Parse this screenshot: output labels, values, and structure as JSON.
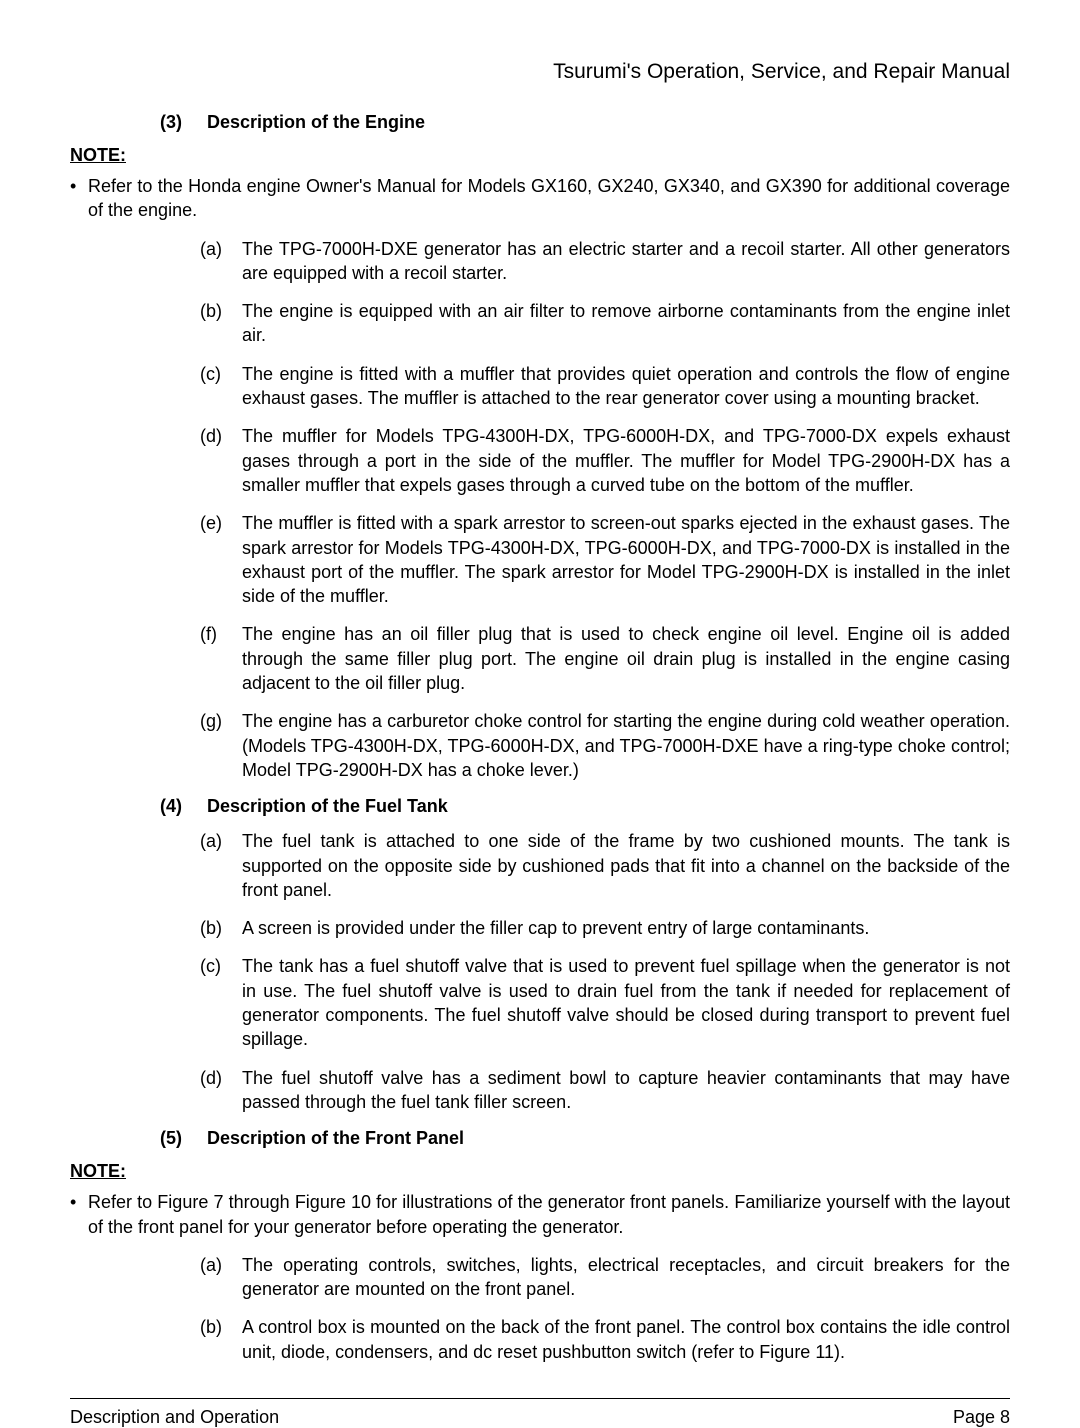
{
  "header": {
    "title": "Tsurumi's Operation, Service, and Repair Manual"
  },
  "sections": {
    "s3": {
      "num": "(3)",
      "title": "Description of the Engine",
      "note": "NOTE:",
      "bullet": "Refer to the Honda engine Owner's Manual for Models GX160, GX240, GX340, and GX390 for additional coverage of the engine.",
      "items": {
        "a": {
          "l": "(a)",
          "t": "The TPG-7000H-DXE generator has an electric starter and a recoil starter. All other generators are equipped with a recoil starter."
        },
        "b": {
          "l": "(b)",
          "t": "The engine is equipped with an air filter to remove airborne contaminants from the engine inlet air."
        },
        "c": {
          "l": "(c)",
          "t": "The engine is fitted with a muffler that provides quiet operation and controls the flow of engine exhaust gases. The muffler is attached to the rear generator cover using a mounting bracket."
        },
        "d": {
          "l": "(d)",
          "t": "The muffler for Models TPG-4300H-DX, TPG-6000H-DX, and TPG-7000-DX expels exhaust gases through a port in the side of the muffler. The muffler for Model TPG-2900H-DX has a smaller muffler that expels gases through a curved tube on the bottom of the muffler."
        },
        "e": {
          "l": "(e)",
          "t": "The muffler is fitted with a spark arrestor to screen-out sparks ejected in the exhaust gases. The spark arrestor for Models TPG-4300H-DX, TPG-6000H-DX, and TPG-7000-DX is installed in the exhaust port of the muffler. The spark arrestor for Model TPG-2900H-DX is installed in the inlet side of the muffler."
        },
        "f": {
          "l": "(f)",
          "t": "The engine has an oil filler plug that is used to check engine oil level. Engine oil is added through the same filler plug port. The engine oil drain plug is installed in the engine casing adjacent to the oil filler plug."
        },
        "g": {
          "l": "(g)",
          "t": "The engine has a carburetor choke control for starting the engine during cold weather operation. (Models TPG-4300H-DX, TPG-6000H-DX, and TPG-7000H-DXE have a ring-type choke control; Model TPG-2900H-DX has a choke lever.)"
        }
      }
    },
    "s4": {
      "num": "(4)",
      "title": "Description of the Fuel Tank",
      "items": {
        "a": {
          "l": "(a)",
          "t": "The fuel tank is attached to one side of the frame by two cushioned mounts. The tank is supported on the opposite side by cushioned pads that fit into a channel on the backside of the front panel."
        },
        "b": {
          "l": "(b)",
          "t": "A screen is provided under the filler cap to prevent entry of large contaminants."
        },
        "c": {
          "l": "(c)",
          "t": "The tank has a fuel shutoff valve that is used to prevent fuel spillage when the generator is not in use. The fuel shutoff valve is used to drain fuel from the tank if needed for replacement of generator components. The fuel shutoff valve should be closed during transport to prevent fuel spillage."
        },
        "d": {
          "l": "(d)",
          "t": "The fuel shutoff valve has a sediment bowl to capture heavier contaminants that may have passed through the fuel tank filler screen."
        }
      }
    },
    "s5": {
      "num": "(5)",
      "title": "Description of the Front Panel",
      "note": "NOTE:",
      "bullet": "Refer to Figure 7 through Figure 10 for illustrations of the generator front panels. Familiarize yourself with the layout of the front panel for your generator before operating the generator.",
      "items": {
        "a": {
          "l": "(a)",
          "t": "The operating controls, switches, lights, electrical receptacles, and circuit breakers for the generator are mounted on the front panel."
        },
        "b": {
          "l": "(b)",
          "t": "A control box is mounted on the back of the front panel. The control box contains the idle control unit, diode, condensers, and dc reset pushbutton switch (refer to Figure 11)."
        }
      }
    }
  },
  "footer": {
    "left": "Description and Operation",
    "right": "Page 8"
  }
}
